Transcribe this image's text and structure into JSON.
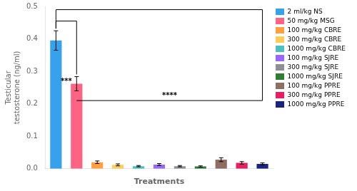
{
  "chart_data": {
    "type": "bar",
    "categories": [
      "2 ml/kg NS",
      "50 mg/kg MSG",
      "100 mg/kg CBRE",
      "300 mg/kg CBRE",
      "1000 mg/kg CBRE",
      "100 mg/kg SJRE",
      "300 mg/kg SJRE",
      "1000 mg/kg SJRE",
      "100 mg/kg PPRE",
      "300 mg/kg PPRE",
      "1000 mg/kg PPRE"
    ],
    "values": [
      0.395,
      0.262,
      0.02,
      0.012,
      0.008,
      0.013,
      0.008,
      0.007,
      0.028,
      0.018,
      0.015
    ],
    "errors": [
      0.03,
      0.022,
      0.004,
      0.003,
      0.002,
      0.003,
      0.002,
      0.002,
      0.006,
      0.004,
      0.003
    ],
    "colors": [
      "#36a2eb",
      "#ff6384",
      "#ff9f40",
      "#ffcd56",
      "#4bc0c0",
      "#9966ff",
      "#8d8f94",
      "#2e7d32",
      "#8d6e63",
      "#e91e63",
      "#1a237e"
    ],
    "xlabel": "Treatments",
    "ylabel": "Testicular\ntestosterone (ng/ml)",
    "ylim": [
      0,
      0.5
    ],
    "yticks": [
      {
        "value": 0,
        "label": "0.0"
      },
      0.1,
      0.2,
      0.3,
      0.4,
      0.5
    ],
    "grid": false,
    "legend": "right",
    "tick_labels": "y",
    "annotations": [
      {
        "text": "***",
        "from": "2 ml/kg NS",
        "to": "50 mg/kg MSG",
        "y": 0.455
      },
      {
        "text": "****",
        "from": "2 ml/kg NS",
        "to": "1000 mg/kg PPRE",
        "y": 0.49,
        "drop_y": 0.21,
        "drop_to": "50 mg/kg MSG"
      }
    ]
  }
}
